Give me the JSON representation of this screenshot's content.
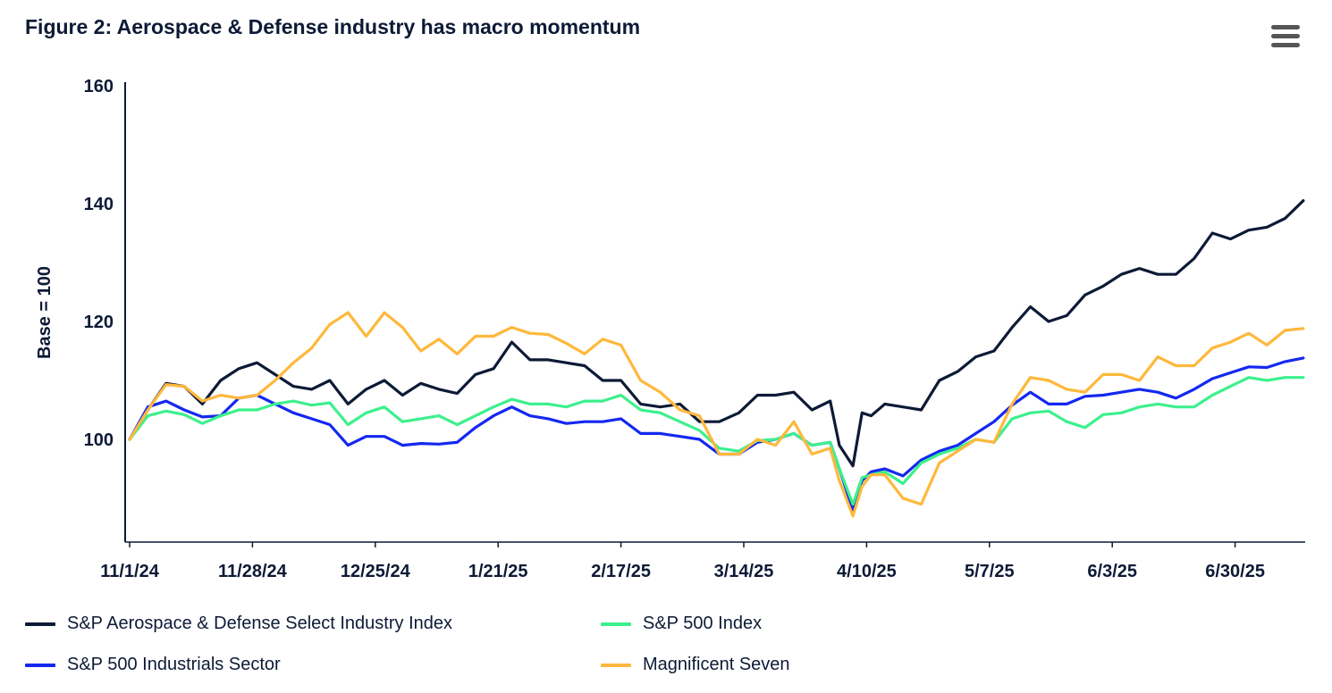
{
  "title": "Figure 2: Aerospace & Defense industry has macro momentum",
  "menu_icon": "hamburger-menu-icon",
  "chart_data": {
    "type": "line",
    "title": "Figure 2: Aerospace & Defense industry has macro momentum",
    "xlabel": "",
    "ylabel": "Base = 100",
    "ylim": [
      82.6,
      160
    ],
    "yticks": [
      100,
      120,
      140,
      160
    ],
    "xticks": [
      "11/1/24",
      "11/28/24",
      "12/25/24",
      "1/21/25",
      "2/17/25",
      "3/14/25",
      "4/10/25",
      "5/7/25",
      "6/3/25",
      "6/30/25"
    ],
    "grid": false,
    "legend_position": "bottom",
    "x": [
      "2024-11-01",
      "2024-11-05",
      "2024-11-09",
      "2024-11-13",
      "2024-11-17",
      "2024-11-21",
      "2024-11-25",
      "2024-11-29",
      "2024-12-03",
      "2024-12-07",
      "2024-12-11",
      "2024-12-15",
      "2024-12-19",
      "2024-12-23",
      "2024-12-27",
      "2024-12-31",
      "2025-01-04",
      "2025-01-08",
      "2025-01-12",
      "2025-01-16",
      "2025-01-20",
      "2025-01-24",
      "2025-01-28",
      "2025-02-01",
      "2025-02-05",
      "2025-02-09",
      "2025-02-13",
      "2025-02-17",
      "2025-02-21",
      "2025-02-25",
      "2025-03-01",
      "2025-03-05",
      "2025-03-09",
      "2025-03-13",
      "2025-03-17",
      "2025-03-21",
      "2025-03-25",
      "2025-03-29",
      "2025-04-02",
      "2025-04-04",
      "2025-04-07",
      "2025-04-09",
      "2025-04-11",
      "2025-04-14",
      "2025-04-18",
      "2025-04-22",
      "2025-04-26",
      "2025-04-30",
      "2025-05-04",
      "2025-05-08",
      "2025-05-12",
      "2025-05-16",
      "2025-05-20",
      "2025-05-24",
      "2025-05-28",
      "2025-06-01",
      "2025-06-05",
      "2025-06-09",
      "2025-06-13",
      "2025-06-17",
      "2025-06-21",
      "2025-06-25",
      "2025-06-29",
      "2025-07-03",
      "2025-07-07",
      "2025-07-11",
      "2025-07-15"
    ],
    "series": [
      {
        "name": "S&P Aerospace & Defense Select Industry Index",
        "color": "#0d1a36",
        "values": [
          100,
          105,
          109.5,
          109,
          106,
          110,
          112,
          113,
          111,
          109,
          108.5,
          110,
          106,
          108.5,
          110,
          107.5,
          109.5,
          108.5,
          107.8,
          111,
          112,
          116.5,
          113.5,
          113.5,
          113,
          112.5,
          110,
          110,
          106,
          105.5,
          106,
          103,
          103,
          104.5,
          107.5,
          107.5,
          108,
          105,
          106.5,
          99,
          95.5,
          104.5,
          104,
          106,
          105.5,
          105,
          110,
          111.5,
          114,
          115,
          119,
          122.5,
          120,
          121,
          124.5,
          126,
          128,
          129,
          128,
          128,
          130.7,
          135,
          134,
          135.5,
          136,
          137.5,
          140.5
        ]
      },
      {
        "name": "S&P 500 Industrials Sector",
        "color": "#1428f0",
        "values": [
          100,
          105.5,
          106.5,
          105,
          103.8,
          104,
          107,
          107.5,
          106,
          104.5,
          103.5,
          102.5,
          99,
          100.5,
          100.5,
          99,
          99.3,
          99.2,
          99.5,
          102,
          104,
          105.5,
          104,
          103.5,
          102.7,
          103,
          103,
          103.5,
          101,
          101,
          100.5,
          100,
          97.5,
          97.5,
          99.5,
          100,
          101,
          99,
          99.5,
          95,
          88,
          93,
          94.5,
          95,
          93.8,
          96.5,
          98,
          99,
          101,
          103,
          105.8,
          108,
          106,
          106,
          107.3,
          107.5,
          108,
          108.5,
          108,
          107,
          108.5,
          110.3,
          111.3,
          112.3,
          112.2,
          113.2,
          113.8
        ]
      },
      {
        "name": "S&P 500 Index",
        "color": "#3cf08c",
        "values": [
          100,
          104,
          104.8,
          104.2,
          102.7,
          104,
          105,
          105,
          106,
          106.5,
          105.8,
          106.2,
          102.5,
          104.5,
          105.5,
          103,
          103.5,
          104,
          102.5,
          104,
          105.5,
          106.8,
          106,
          106,
          105.5,
          106.5,
          106.5,
          107.5,
          105,
          104.5,
          103,
          101.5,
          98.5,
          98,
          99.8,
          100,
          101,
          99,
          99.5,
          95,
          89,
          93.5,
          94,
          94.5,
          92.5,
          96,
          97.5,
          98.5,
          100,
          99.5,
          103.5,
          104.5,
          104.8,
          103,
          102,
          104.2,
          104.5,
          105.5,
          106,
          105.5,
          105.5,
          107.5,
          109,
          110.5,
          110,
          110.5,
          110.5
        ]
      },
      {
        "name": "Magnificent Seven",
        "color": "#ffb83c",
        "values": [
          100,
          105,
          109.3,
          109,
          106.5,
          107.5,
          107,
          107.5,
          110,
          113,
          115.5,
          119.5,
          121.5,
          117.5,
          121.5,
          119,
          115,
          117,
          114.5,
          117.5,
          117.5,
          119,
          118,
          117.8,
          116.3,
          114.5,
          117,
          116,
          110,
          108,
          105,
          104,
          97.5,
          97.5,
          100,
          99,
          103,
          97.5,
          98.5,
          93,
          87,
          92,
          94,
          94,
          90,
          89,
          96,
          98,
          100,
          99.5,
          106,
          110.5,
          110,
          108.5,
          108,
          111,
          111,
          110,
          114,
          112.5,
          112.5,
          115.5,
          116.5,
          118,
          116,
          118.5,
          118.8
        ]
      }
    ]
  }
}
